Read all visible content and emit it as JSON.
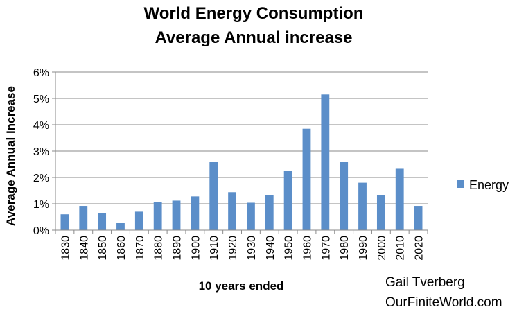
{
  "chart_data": {
    "type": "bar",
    "title": [
      "World Energy Consumption",
      "Average Annual increase"
    ],
    "xlabel": "10 years ended",
    "ylabel": "Average Annual Increase",
    "categories": [
      "1830",
      "1840",
      "1850",
      "1860",
      "1870",
      "1880",
      "1890",
      "1900",
      "1910",
      "1920",
      "1930",
      "1940",
      "1950",
      "1960",
      "1970",
      "1980",
      "1990",
      "2000",
      "2010",
      "2020"
    ],
    "series": [
      {
        "name": "Energy",
        "color": "#5b8ec9",
        "values": [
          0.6,
          0.92,
          0.65,
          0.28,
          0.7,
          1.06,
          1.12,
          1.28,
          2.6,
          1.44,
          1.04,
          1.32,
          2.24,
          3.85,
          5.15,
          2.6,
          1.8,
          1.34,
          2.33,
          0.92
        ]
      }
    ],
    "ylim": [
      0,
      6
    ],
    "yticks": [
      0,
      1,
      2,
      3,
      4,
      5,
      6
    ],
    "ytick_labels": [
      "0%",
      "1%",
      "2%",
      "3%",
      "4%",
      "5%",
      "6%"
    ],
    "grid": true,
    "legend": "right"
  },
  "credit": {
    "author": "Gail Tverberg",
    "site": "OurFiniteWorld.com"
  }
}
